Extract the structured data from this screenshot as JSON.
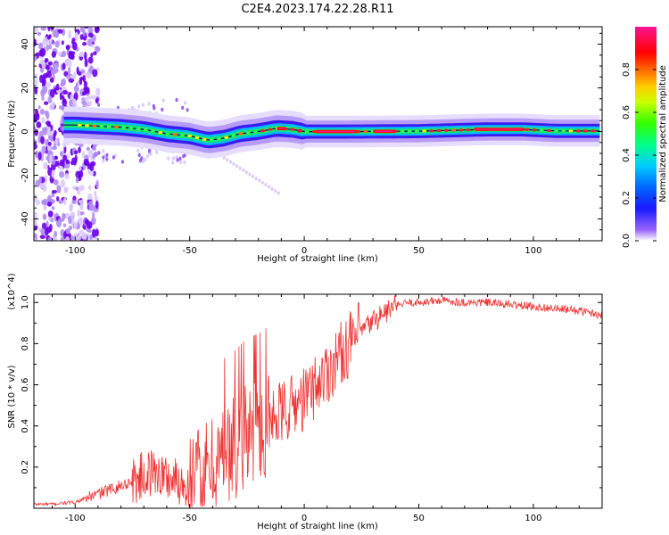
{
  "figure": {
    "title": "C2E4.2023.174.22.28.R11"
  },
  "chart_data": [
    {
      "type": "heatmap",
      "xlabel": "Height of straight line (km)",
      "ylabel": "Frequency (Hz)",
      "xlim": [
        -118,
        130
      ],
      "ylim": [
        -50,
        48
      ],
      "xticks": [
        -100,
        -50,
        0,
        50,
        100
      ],
      "yticks": [
        -40,
        -20,
        0,
        20,
        40
      ],
      "ridge_center_hz": [
        [
          -118,
          3
        ],
        [
          -100,
          3
        ],
        [
          -90,
          2.5
        ],
        [
          -80,
          2
        ],
        [
          -70,
          1
        ],
        [
          -60,
          -1
        ],
        [
          -50,
          -2
        ],
        [
          -42,
          -4
        ],
        [
          -35,
          -3
        ],
        [
          -28,
          -1
        ],
        [
          -20,
          0
        ],
        [
          -12,
          1.5
        ],
        [
          -5,
          1
        ],
        [
          0,
          0
        ],
        [
          20,
          0
        ],
        [
          50,
          0.2
        ],
        [
          80,
          1
        ],
        [
          95,
          1
        ],
        [
          110,
          0.3
        ],
        [
          130,
          0.3
        ]
      ],
      "colorbar": {
        "label": "Normalized spectral amplitude",
        "range": [
          0,
          1
        ],
        "ticks": [
          0.0,
          0.2,
          0.4,
          0.6,
          0.8
        ],
        "tick_labels": [
          "0.0",
          "0.2",
          "0.4",
          "0.6",
          "0.8"
        ],
        "colors": [
          "#ffffff",
          "#9966ff",
          "#1a1aff",
          "#00ccff",
          "#00ff88",
          "#66ff00",
          "#ffff00",
          "#ff8800",
          "#ff0000",
          "#ff1493"
        ]
      }
    },
    {
      "type": "line",
      "xlabel": "Height of straight line (km)",
      "ylabel": "SNR (10 * v/v)",
      "y_multiplier": "(x10^4)",
      "xlim": [
        -118,
        130
      ],
      "ylim": [
        0,
        1.04
      ],
      "xticks": [
        -100,
        -50,
        0,
        50,
        100
      ],
      "yticks": [
        0.2,
        0.4,
        0.6,
        0.8,
        1.0
      ],
      "ytick_labels": [
        "0.2",
        "0.4",
        "0.6",
        "0.8",
        "1.0"
      ],
      "series": [
        {
          "color": "#ee3333",
          "x": [
            -118,
            -110,
            -100,
            -95,
            -90,
            -85,
            -80,
            -75,
            -70,
            -65,
            -60,
            -55,
            -50,
            -45,
            -40,
            -35,
            -30,
            -25,
            -20,
            -15,
            -10,
            -5,
            0,
            5,
            10,
            15,
            20,
            25,
            30,
            35,
            40,
            45,
            50,
            60,
            70,
            80,
            90,
            100,
            110,
            120,
            130
          ],
          "y": [
            0.02,
            0.02,
            0.03,
            0.05,
            0.07,
            0.09,
            0.11,
            0.13,
            0.16,
            0.18,
            0.15,
            0.13,
            0.12,
            0.15,
            0.2,
            0.26,
            0.3,
            0.36,
            0.38,
            0.42,
            0.46,
            0.5,
            0.53,
            0.6,
            0.66,
            0.74,
            0.8,
            0.86,
            0.91,
            0.95,
            0.98,
            1.0,
            1.0,
            1.01,
            1.0,
            1.0,
            0.99,
            0.98,
            0.97,
            0.96,
            0.94
          ]
        }
      ]
    }
  ]
}
